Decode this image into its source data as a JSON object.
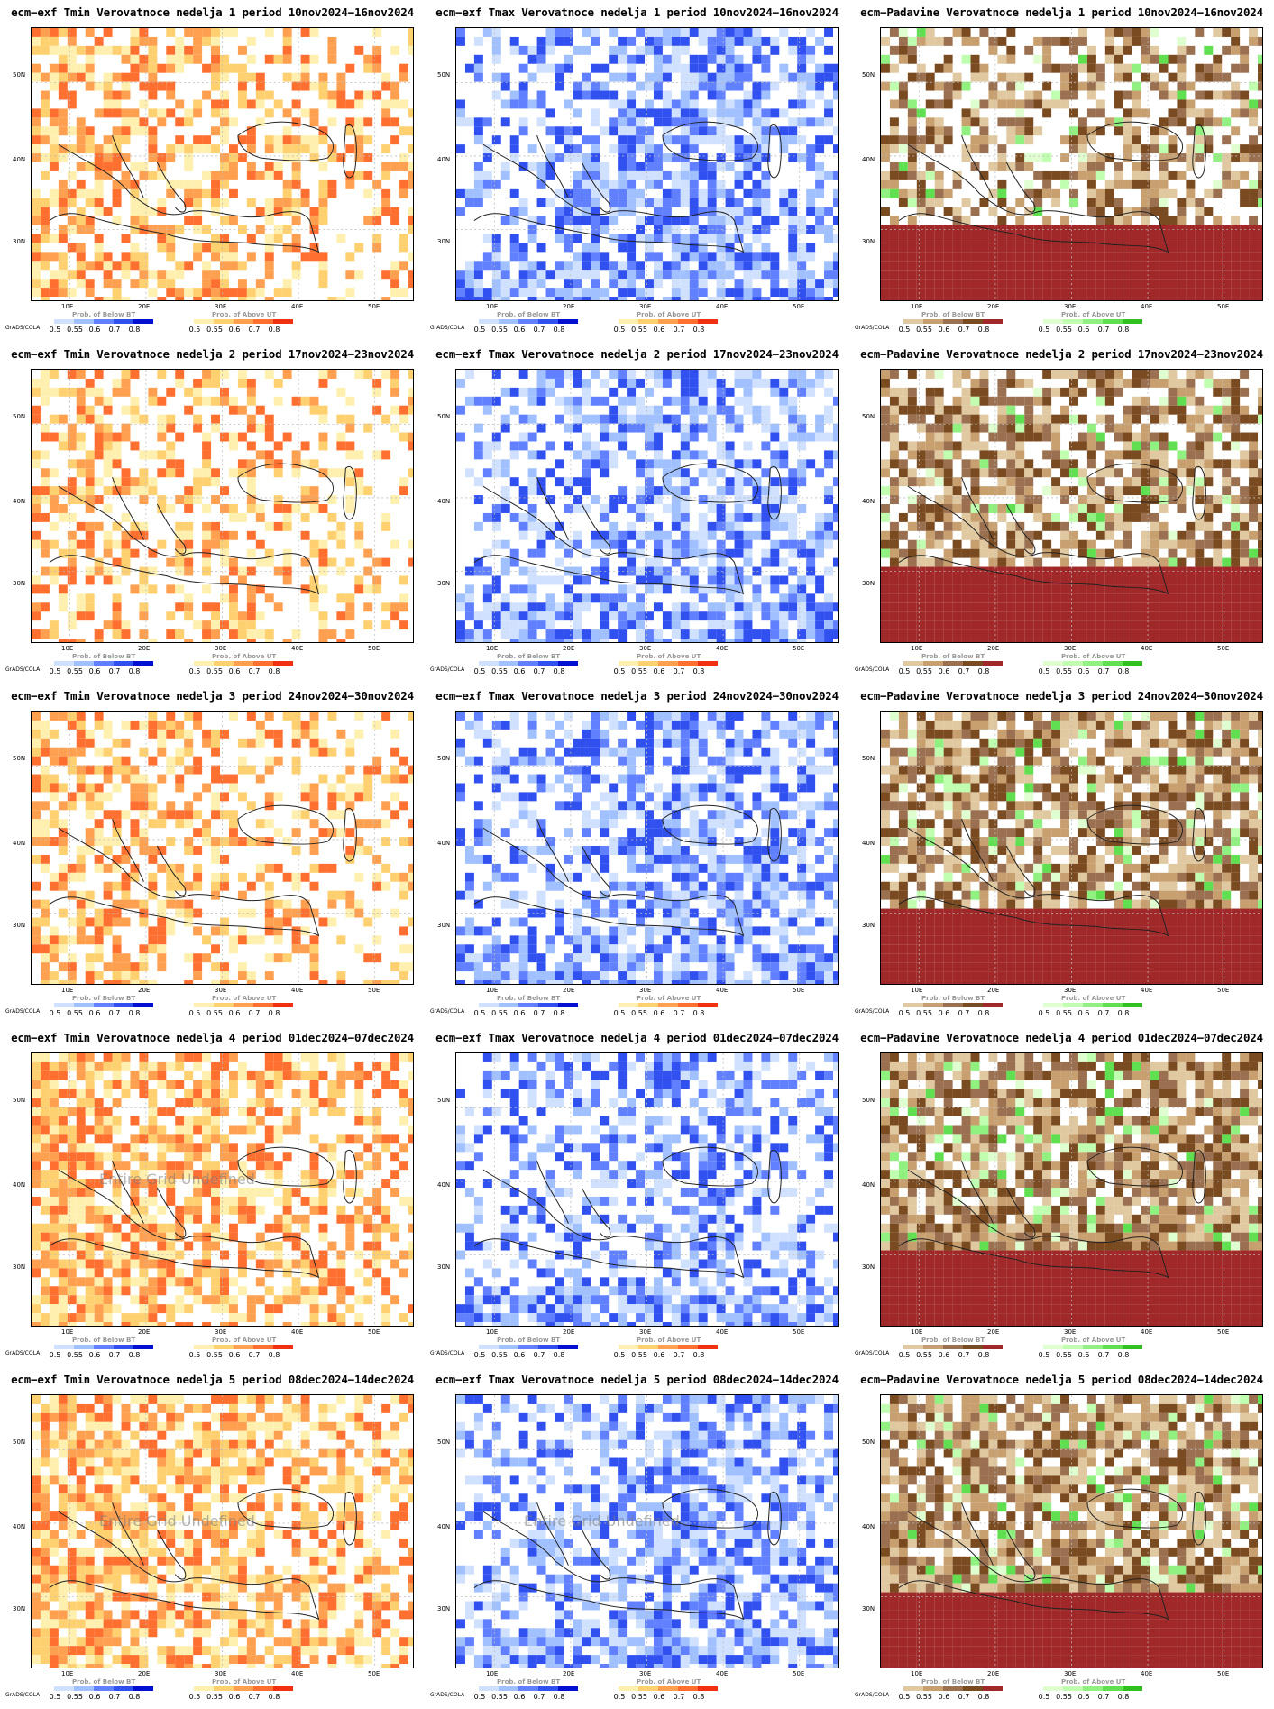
{
  "panels": [
    {
      "title": "ecm−exf Tmin Verovatnoce nedelja 1 period 10nov2024−16nov2024",
      "kind": "tmin",
      "fill": 0.55
    },
    {
      "title": "ecm−exf Tmax Verovatnoce nedelja 1 period 10nov2024−16nov2024",
      "kind": "tmax",
      "fill": 0.6
    },
    {
      "title": "ecm−Padavine Verovatnoce nedelja 1 period 10nov2024−16nov2024",
      "kind": "prec",
      "fill": 0.55
    },
    {
      "title": "ecm−exf Tmin Verovatnoce nedelja 2 period 17nov2024−23nov2024",
      "kind": "tmin",
      "fill": 0.45
    },
    {
      "title": "ecm−exf Tmax Verovatnoce nedelja 2 period 17nov2024−23nov2024",
      "kind": "tmax",
      "fill": 0.55
    },
    {
      "title": "ecm−Padavine Verovatnoce nedelja 2 period 17nov2024−23nov2024",
      "kind": "prec",
      "fill": 0.7
    },
    {
      "title": "ecm−exf Tmin Verovatnoce nedelja 3 period 24nov2024−30nov2024",
      "kind": "tmin",
      "fill": 0.5
    },
    {
      "title": "ecm−exf Tmax Verovatnoce nedelja 3 period 24nov2024−30nov2024",
      "kind": "tmax",
      "fill": 0.6
    },
    {
      "title": "ecm−Padavine Verovatnoce nedelja 3 period 24nov2024−30nov2024",
      "kind": "prec",
      "fill": 0.8
    },
    {
      "title": "ecm−exf Tmin Verovatnoce nedelja 4 period 01dec2024−07dec2024",
      "kind": "tmin",
      "fill": 0.7,
      "note": "Entire Grid Undefined"
    },
    {
      "title": "ecm−exf Tmax Verovatnoce nedelja 4 period 01dec2024−07dec2024",
      "kind": "tmax",
      "fill": 0.5
    },
    {
      "title": "ecm−Padavine Verovatnoce nedelja 4 period 01dec2024−07dec2024",
      "kind": "prec",
      "fill": 0.8
    },
    {
      "title": "ecm−exf Tmin Verovatnoce nedelja 5 period 08dec2024−14dec2024",
      "kind": "tmin",
      "fill": 0.7,
      "note": "Entire Grid Undefined"
    },
    {
      "title": "ecm−exf Tmax Verovatnoce nedelja 5 period 08dec2024−14dec2024",
      "kind": "tmax",
      "fill": 0.55,
      "note": "Entire Grid Undefined"
    },
    {
      "title": "ecm−Padavine Verovatnoce nedelja 5 period 08dec2024−14dec2024",
      "kind": "prec",
      "fill": 0.8
    }
  ],
  "ylabels": [
    "50N",
    "40N",
    "30N"
  ],
  "xlabels": [
    "10E",
    "20E",
    "30E",
    "40E",
    "50E"
  ],
  "grads": "GrADS/COLA",
  "below_title": "Prob. of Below BT",
  "above_title": "Prob. of Above UT",
  "scale_labels": [
    "0.5",
    "0.55",
    "0.6",
    "0.7",
    "0.8"
  ],
  "colors": {
    "tmin": [
      "#fff0b0",
      "#ffd070",
      "#ffa050",
      "#ff7030",
      "#f03010"
    ],
    "tmax": [
      "#d0e0ff",
      "#a0c0ff",
      "#6080ff",
      "#3050f0",
      "#0010d0"
    ],
    "prec_dry": [
      "#e0c8a0",
      "#c8a070",
      "#9a7050",
      "#7a4a20",
      "#a02828"
    ],
    "prec_wet": [
      "#e0ffd0",
      "#c0ffb0",
      "#90f080",
      "#60e050",
      "#30c020"
    ]
  }
}
